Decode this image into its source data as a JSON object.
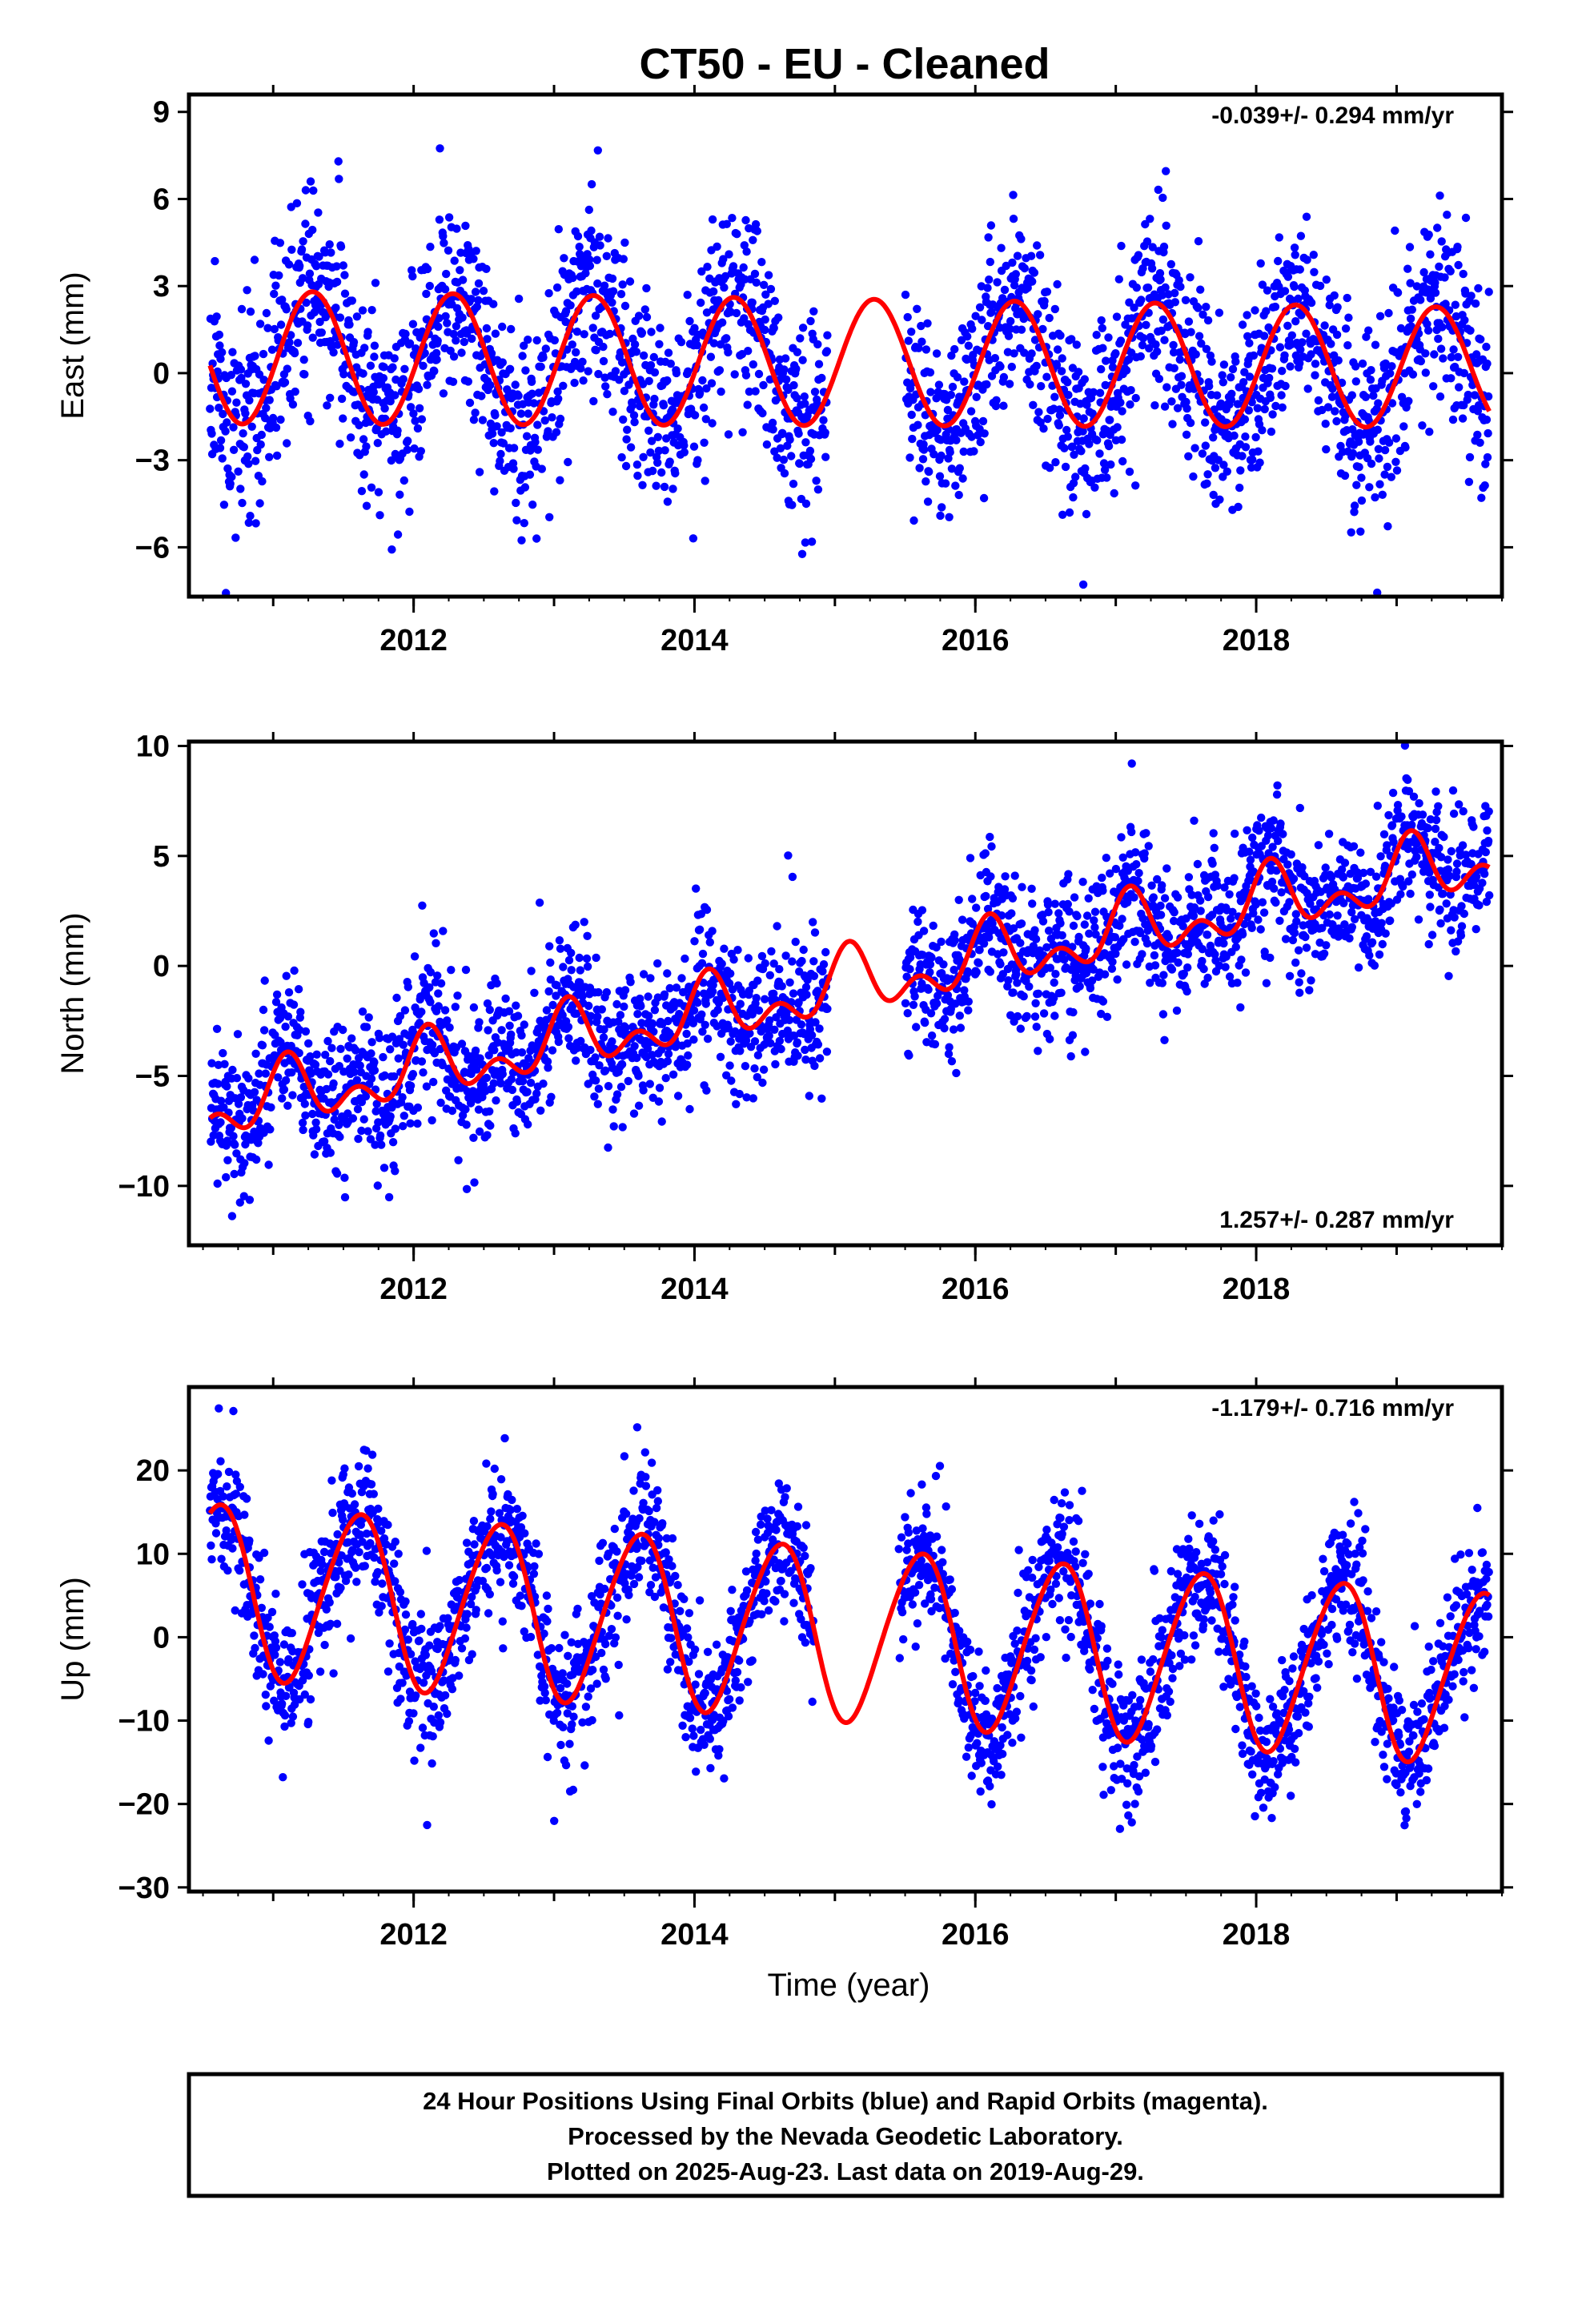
{
  "title": "CT50  - EU - Cleaned",
  "xlabel": "Time (year)",
  "footer": {
    "lines": [
      "24 Hour Positions Using Final Orbits (blue) and Rapid Orbits (magenta).",
      "Processed by the Nevada Geodetic Laboratory.",
      "Plotted on 2025-Aug-23. Last data on 2019-Aug-29."
    ]
  },
  "colors": {
    "points": "#0000ff",
    "fit": "#ff0000",
    "axes": "#000000",
    "background": "#ffffff"
  },
  "chart_data": [
    {
      "type": "scatter",
      "id": "east",
      "ylabel": "East (mm)",
      "rate_label": "-0.039+/- 0.294 mm/yr",
      "rate_position": "top-right",
      "xlim": [
        2010.4,
        2019.75
      ],
      "ylim": [
        -7.7,
        9.6
      ],
      "yticks": [
        -6,
        -3,
        0,
        3,
        6,
        9
      ],
      "yticklabels": [
        "−6",
        "−3",
        "0",
        "3",
        "6",
        "9"
      ],
      "xticks": [
        2012,
        2014,
        2016,
        2018
      ],
      "xticklabels": [
        "2012",
        "2014",
        "2016",
        "2018"
      ],
      "gaps": [
        [
          2014.95,
          2015.5
        ]
      ],
      "data_range": [
        2010.55,
        2019.66
      ],
      "model": {
        "offset": 0.55,
        "rate": -0.039,
        "t0": 2010.55,
        "amp_annual": 2.3,
        "phase_annual": 2011.28,
        "amp_semi": 0.0,
        "phase_semi": 2011.0,
        "amp_decay": 0.1
      },
      "noise": {
        "sigma": 1.7,
        "seed": 11,
        "n": 2900
      },
      "series": [
        {
          "name": "Final Orbits (blue)",
          "color": "#0000ff",
          "values_source": "daily positions"
        },
        {
          "name": "Fit",
          "color": "#ff0000",
          "values_source": "model"
        }
      ]
    },
    {
      "type": "scatter",
      "id": "north",
      "ylabel": "North (mm)",
      "rate_label": "1.257+/- 0.287 mm/yr",
      "rate_position": "bottom-right",
      "xlim": [
        2010.4,
        2019.75
      ],
      "ylim": [
        -12.7,
        10.2
      ],
      "yticks": [
        -10,
        -5,
        0,
        5,
        10
      ],
      "yticklabels": [
        "−10",
        "−5",
        "0",
        "5",
        "10"
      ],
      "xticks": [
        2012,
        2014,
        2016,
        2018
      ],
      "xticklabels": [
        "2012",
        "2014",
        "2016",
        "2018"
      ],
      "gaps": [
        [
          2014.95,
          2015.5
        ]
      ],
      "data_range": [
        2010.55,
        2019.66
      ],
      "model": {
        "offset": -6.6,
        "rate": 1.257,
        "t0": 2010.55,
        "amp_annual": 1.1,
        "phase_annual": 2011.1,
        "amp_semi": 0.9,
        "phase_semi": 2011.1,
        "amp_decay": 0.0
      },
      "noise": {
        "sigma": 1.6,
        "seed": 23,
        "n": 2900
      },
      "series": [
        {
          "name": "Final Orbits (blue)",
          "color": "#0000ff",
          "values_source": "daily positions"
        },
        {
          "name": "Fit",
          "color": "#ff0000",
          "values_source": "model"
        }
      ]
    },
    {
      "type": "scatter",
      "id": "up",
      "ylabel": "Up (mm)",
      "rate_label": "-1.179+/- 0.716 mm/yr",
      "rate_position": "top-right",
      "xlim": [
        2010.4,
        2019.75
      ],
      "ylim": [
        -30.5,
        30.0
      ],
      "yticks": [
        -30,
        -20,
        -10,
        0,
        10,
        20
      ],
      "yticklabels": [
        "−30",
        "−20",
        "−10",
        "0",
        "10",
        "20"
      ],
      "xticks": [
        2012,
        2014,
        2016,
        2018
      ],
      "xticklabels": [
        "2012",
        "2014",
        "2016",
        "2018"
      ],
      "gaps": [
        [
          2014.85,
          2015.45
        ]
      ],
      "data_range": [
        2010.55,
        2019.66
      ],
      "model": {
        "offset": 5.8,
        "rate": -1.179,
        "t0": 2010.55,
        "amp_annual": 10.3,
        "phase_annual": 2010.6,
        "amp_semi": 0.9,
        "phase_semi": 2010.75,
        "amp_decay": 0.0
      },
      "noise": {
        "sigma": 4.2,
        "seed": 37,
        "n": 2900
      },
      "series": [
        {
          "name": "Final Orbits (blue)",
          "color": "#0000ff",
          "values_source": "daily positions"
        },
        {
          "name": "Fit",
          "color": "#ff0000",
          "values_source": "model"
        }
      ]
    }
  ]
}
